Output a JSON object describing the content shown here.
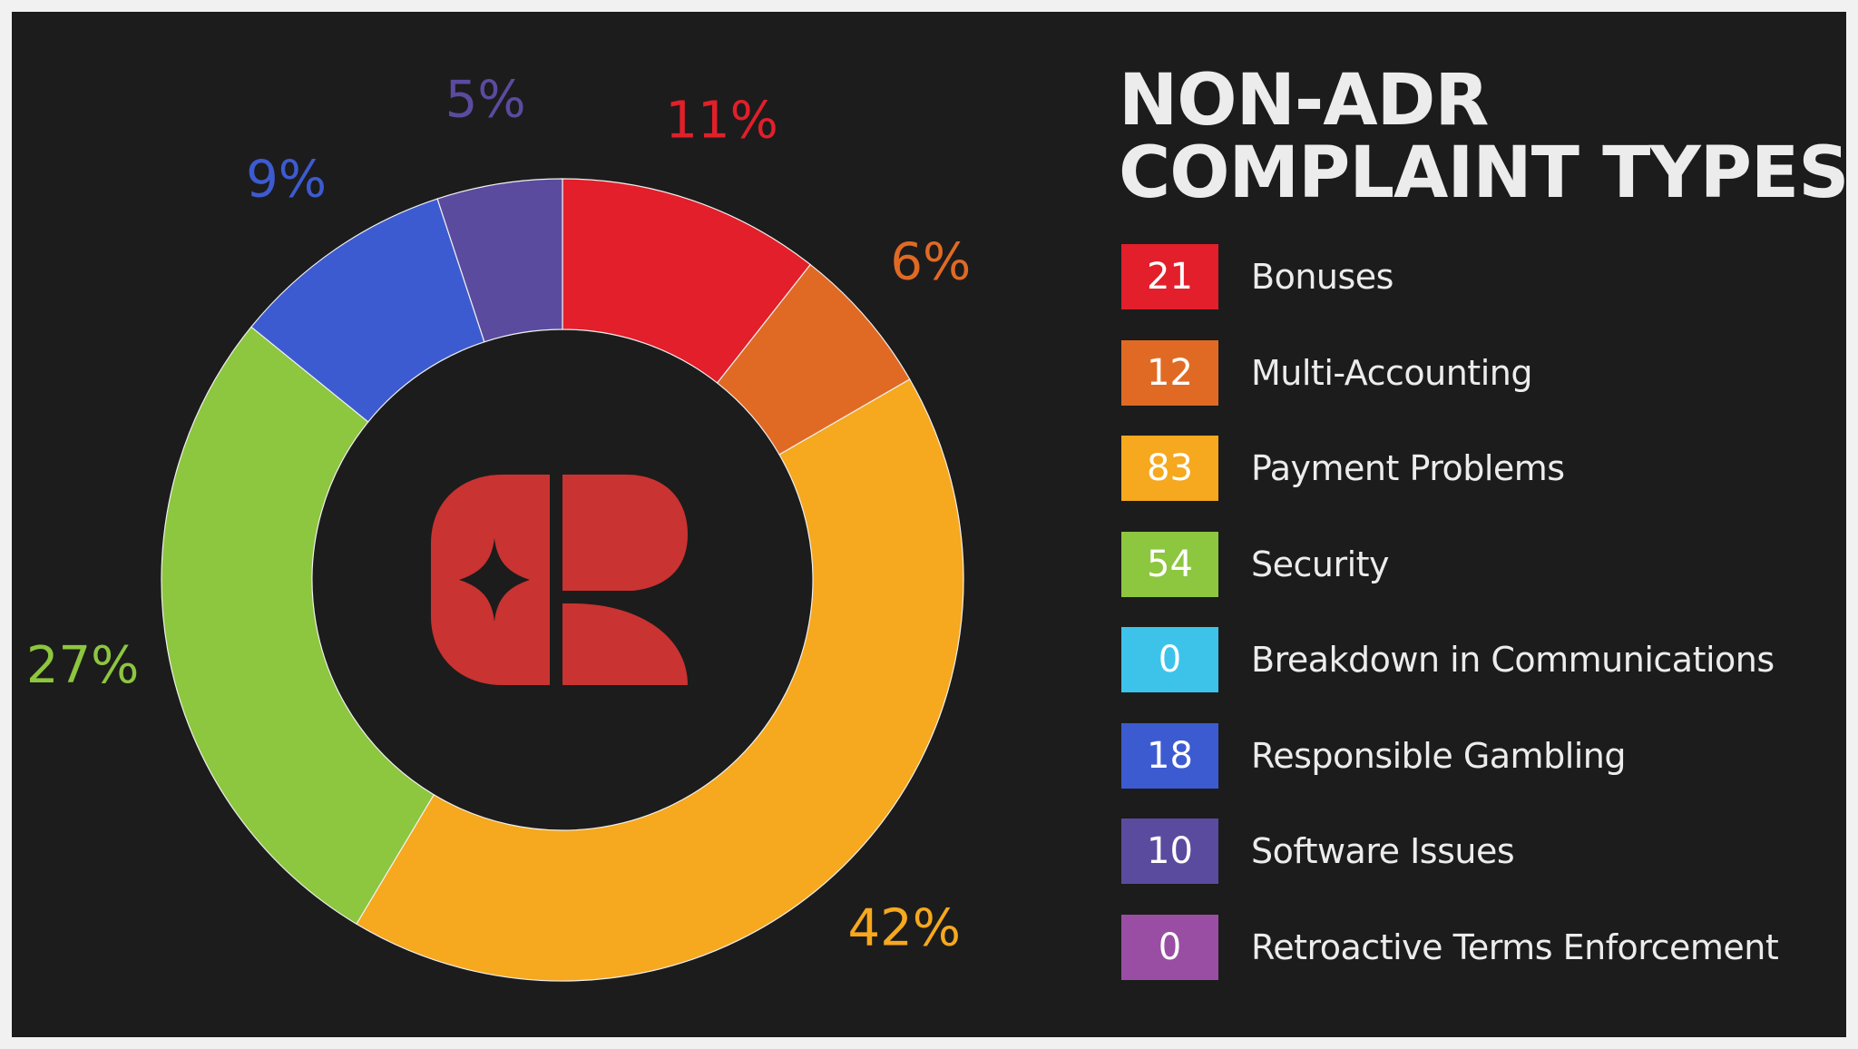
{
  "chart_data": {
    "type": "pie",
    "style": "donut",
    "title": "NON-ADR COMPLAINT TYPES",
    "title_lines": [
      "NON-ADR",
      "COMPLAINT TYPES"
    ],
    "legend_position": "right",
    "background_color": "#1c1c1c",
    "segments": [
      {
        "label": "Bonuses",
        "value": 21,
        "percent_label": "11%",
        "color": "#e21f2a"
      },
      {
        "label": "Multi-Accounting",
        "value": 12,
        "percent_label": "6%",
        "color": "#e06a24"
      },
      {
        "label": "Payment Problems",
        "value": 83,
        "percent_label": "42%",
        "color": "#f6a81e"
      },
      {
        "label": "Security",
        "value": 54,
        "percent_label": "27%",
        "color": "#8dc63f"
      },
      {
        "label": "Breakdown in Communications",
        "value": 0,
        "percent_label": "",
        "color": "#3dc3ea"
      },
      {
        "label": "Responsible Gambling",
        "value": 18,
        "percent_label": "9%",
        "color": "#3d5bd0"
      },
      {
        "label": "Software Issues",
        "value": 10,
        "percent_label": "5%",
        "color": "#5b4b9f"
      },
      {
        "label": "Retroactive Terms Enforcement",
        "value": 0,
        "percent_label": "",
        "color": "#9a4ea3"
      }
    ]
  },
  "logo": {
    "name": "cr-logo-icon",
    "color": "#c93331"
  }
}
